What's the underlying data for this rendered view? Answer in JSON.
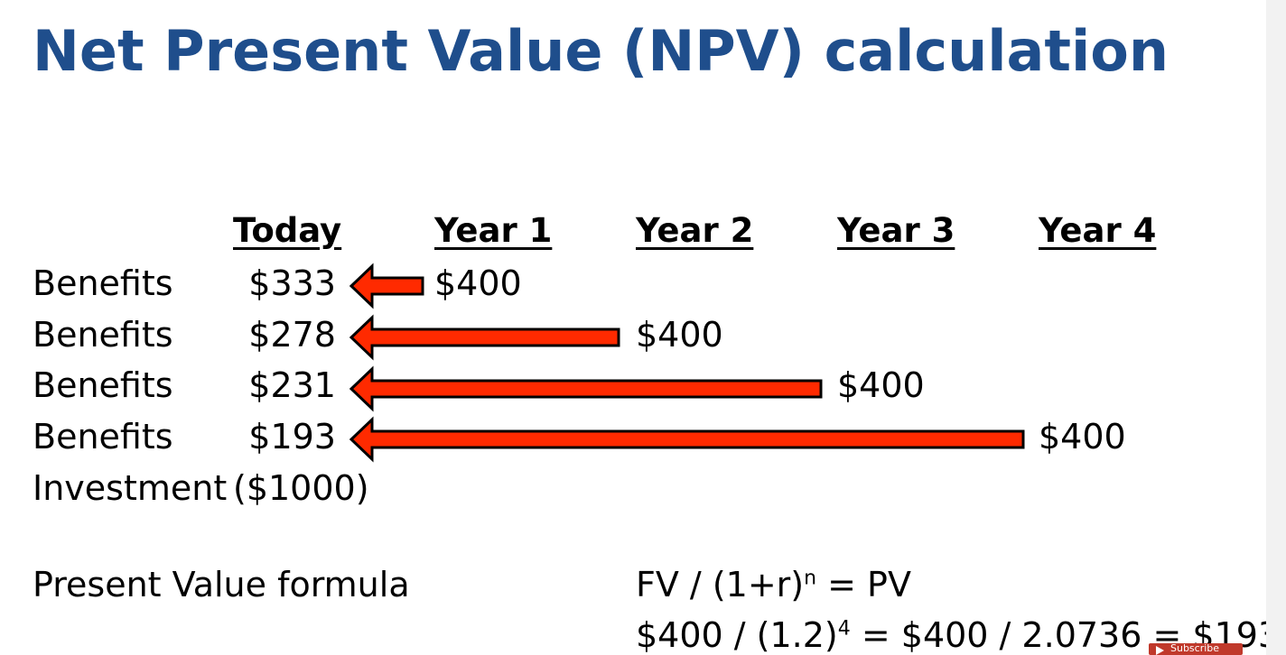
{
  "slide": {
    "title": "Net Present Value (NPV) calculation"
  },
  "columns": {
    "today": "Today",
    "year1": "Year 1",
    "year2": "Year 2",
    "year3": "Year 3",
    "year4": "Year 4"
  },
  "rows": [
    {
      "label": "Benefits",
      "present_value": "$333",
      "future_value": "$400",
      "year": 1
    },
    {
      "label": "Benefits",
      "present_value": "$278",
      "future_value": "$400",
      "year": 2
    },
    {
      "label": "Benefits",
      "present_value": "$231",
      "future_value": "$400",
      "year": 3
    },
    {
      "label": "Benefits",
      "present_value": "$193",
      "future_value": "$400",
      "year": 4
    }
  ],
  "investment": {
    "label": "Investment",
    "value": "($1000)"
  },
  "formula": {
    "label": "Present Value formula",
    "line1_left": "FV / (1+r)",
    "line1_exp": "n",
    "line1_right": " = PV",
    "line2_left": "$400 / (1.2)",
    "line2_exp": "4",
    "line2_right": " = $400 / 2.0736 = $193"
  },
  "badge": {
    "text": "Subscribe",
    "icon": "play-icon"
  },
  "colors": {
    "title": "#1f4e8c",
    "arrow_fill": "#ff2a00",
    "arrow_stroke": "#000000"
  }
}
